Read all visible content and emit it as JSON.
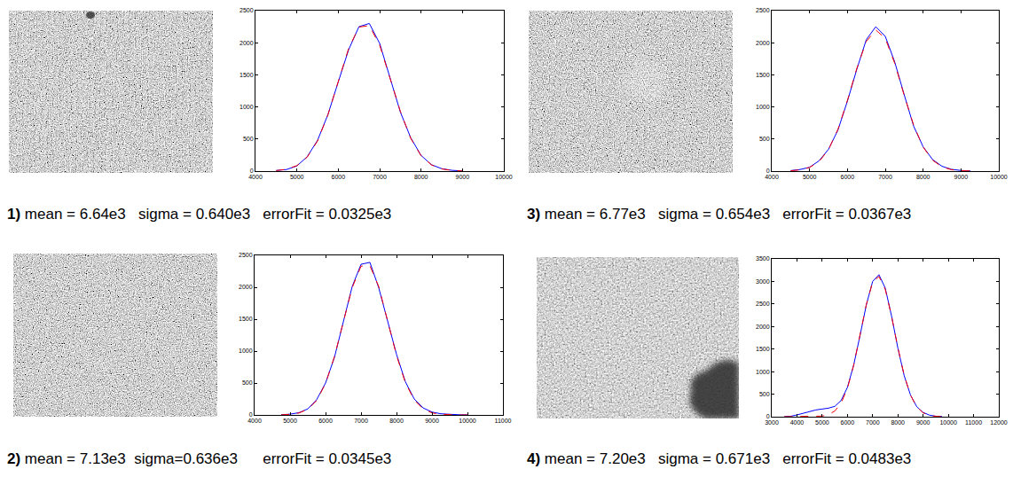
{
  "chart_data": [
    {
      "type": "line",
      "label": "1)",
      "caption": "mean = 6.64e3   sigma = 0.640e3   errorFit = 0.0325e3",
      "x": [
        4500,
        4750,
        5000,
        5250,
        5500,
        5750,
        6000,
        6250,
        6500,
        6750,
        7000,
        7250,
        7500,
        7750,
        8000,
        8250,
        8500,
        8750,
        9000
      ],
      "series": [
        {
          "color": "#0000ff",
          "line_style": "solid",
          "values": [
            10,
            25,
            80,
            225,
            480,
            880,
            1390,
            1890,
            2250,
            2300,
            1990,
            1450,
            920,
            520,
            245,
            100,
            38,
            12,
            3
          ]
        },
        {
          "color": "#ff0000",
          "line_style": "dashed",
          "values": [
            8,
            29,
            86,
            217,
            470,
            875,
            1395,
            1910,
            2245,
            2266,
            1963,
            1461,
            932,
            511,
            240,
            97,
            34,
            10,
            2
          ]
        }
      ],
      "xlim": [
        4000,
        10000
      ],
      "xticks": [
        4000,
        5000,
        6000,
        7000,
        8000,
        9000,
        10000
      ],
      "ylim": [
        0,
        2500
      ],
      "yticks": [
        0,
        500,
        1000,
        1500,
        2000,
        2500
      ],
      "grid": false
    },
    {
      "type": "line",
      "label": "2)",
      "caption": "mean = 7.13e3  sigma=0.636e3      errorFit = 0.0345e3",
      "x": [
        4750,
        5000,
        5250,
        5500,
        5750,
        6000,
        6250,
        6500,
        6750,
        7000,
        7250,
        7500,
        7750,
        8000,
        8250,
        8500,
        8750,
        9000,
        9250,
        9500,
        9750,
        10000
      ],
      "series": [
        {
          "color": "#0000ff",
          "line_style": "solid",
          "values": [
            3,
            12,
            35,
            95,
            240,
            500,
            900,
            1440,
            2010,
            2360,
            2390,
            1990,
            1460,
            950,
            520,
            250,
            110,
            45,
            18,
            8,
            3,
            1
          ]
        },
        {
          "color": "#ff0000",
          "line_style": "dashed",
          "values": [
            2,
            9,
            30,
            89,
            226,
            491,
            914,
            1457,
            1992,
            2331,
            2338,
            2010,
            1480,
            933,
            505,
            234,
            93,
            32,
            9,
            2,
            0,
            0
          ]
        }
      ],
      "xlim": [
        4000,
        11000
      ],
      "xticks": [
        4000,
        5000,
        6000,
        7000,
        8000,
        9000,
        10000,
        11000
      ],
      "ylim": [
        0,
        2500
      ],
      "yticks": [
        0,
        500,
        1000,
        1500,
        2000,
        2500
      ],
      "grid": false
    },
    {
      "type": "line",
      "label": "3)",
      "caption": "mean = 6.77e3   sigma = 0.654e3   errorFit = 0.0367e3",
      "x": [
        4500,
        4750,
        5000,
        5250,
        5500,
        5750,
        6000,
        6250,
        6500,
        6750,
        7000,
        7250,
        7500,
        7750,
        8000,
        8250,
        8500,
        8750,
        9000,
        9250
      ],
      "series": [
        {
          "color": "#0000ff",
          "line_style": "solid",
          "values": [
            8,
            25,
            60,
            160,
            340,
            640,
            1090,
            1590,
            2050,
            2250,
            2100,
            1700,
            1190,
            700,
            380,
            180,
            75,
            28,
            10,
            3
          ]
        },
        {
          "color": "#ff0000",
          "line_style": "dashed",
          "values": [
            5,
            19,
            57,
            148,
            334,
            652,
            1100,
            1604,
            2020,
            2199,
            2068,
            1680,
            1180,
            716,
            375,
            170,
            66,
            22,
            7,
            2
          ]
        }
      ],
      "xlim": [
        4000,
        10000
      ],
      "xticks": [
        4000,
        5000,
        6000,
        7000,
        8000,
        9000,
        10000
      ],
      "ylim": [
        0,
        2500
      ],
      "yticks": [
        0,
        500,
        1000,
        1500,
        2000,
        2500
      ],
      "grid": false
    },
    {
      "type": "line",
      "label": "4)",
      "caption": "mean = 7.20e3   sigma = 0.671e3   errorFit = 0.0483e3",
      "x": [
        3500,
        3750,
        4000,
        4250,
        4500,
        4750,
        5000,
        5250,
        5500,
        5750,
        6000,
        6250,
        6500,
        6750,
        7000,
        7250,
        7500,
        7750,
        8000,
        8250,
        8500,
        8750,
        9000,
        9250,
        9500,
        9750
      ],
      "series": [
        {
          "color": "#0000ff",
          "line_style": "solid",
          "values": [
            2,
            10,
            40,
            80,
            120,
            150,
            170,
            190,
            230,
            360,
            650,
            1150,
            1800,
            2480,
            3000,
            3150,
            2850,
            2230,
            1520,
            910,
            480,
            220,
            95,
            35,
            12,
            4
          ]
        },
        {
          "color": "#ff0000",
          "line_style": "dashed",
          "values": [
            0,
            0,
            0,
            0,
            1,
            4,
            14,
            46,
            126,
            302,
            630,
            1145,
            1811,
            2491,
            2986,
            3110,
            2824,
            2229,
            1532,
            917,
            478,
            216,
            85,
            29,
            9,
            2
          ]
        }
      ],
      "xlim": [
        3000,
        12000
      ],
      "xticks": [
        3000,
        4000,
        5000,
        6000,
        7000,
        8000,
        9000,
        10000,
        11000,
        12000
      ],
      "ylim": [
        0,
        3500
      ],
      "yticks": [
        0,
        500,
        1000,
        1500,
        2000,
        2500,
        3000,
        3500
      ],
      "grid": false
    }
  ]
}
